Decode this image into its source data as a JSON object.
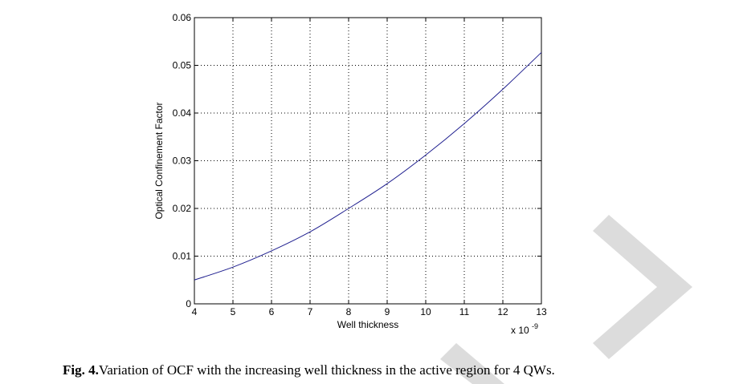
{
  "chart_data": {
    "type": "line",
    "title": "",
    "xlabel": "Well thickness",
    "ylabel": "Optical Confinement Factor",
    "x_multiplier_label": "x 10",
    "x_multiplier_exponent": "-9",
    "xlim": [
      4,
      13
    ],
    "ylim": [
      0,
      0.06
    ],
    "xticks": [
      "4",
      "5",
      "6",
      "7",
      "8",
      "9",
      "10",
      "11",
      "12",
      "13"
    ],
    "yticks": [
      "0",
      "0.01",
      "0.02",
      "0.03",
      "0.04",
      "0.05",
      "0.06"
    ],
    "grid": true,
    "line_color": "#1f1f8f",
    "series": [
      {
        "x": [
          4,
          5,
          6,
          7,
          8,
          9,
          10,
          11,
          12,
          13
        ],
        "values": [
          0.005,
          0.0077,
          0.0111,
          0.0151,
          0.02,
          0.0252,
          0.0312,
          0.0378,
          0.045,
          0.0527
        ]
      }
    ]
  },
  "caption": {
    "label": "Fig. 4.",
    "text": "Variation of OCF with the increasing well thickness in the active region for 4 QWs."
  },
  "watermark_color": "#dcdcdc"
}
